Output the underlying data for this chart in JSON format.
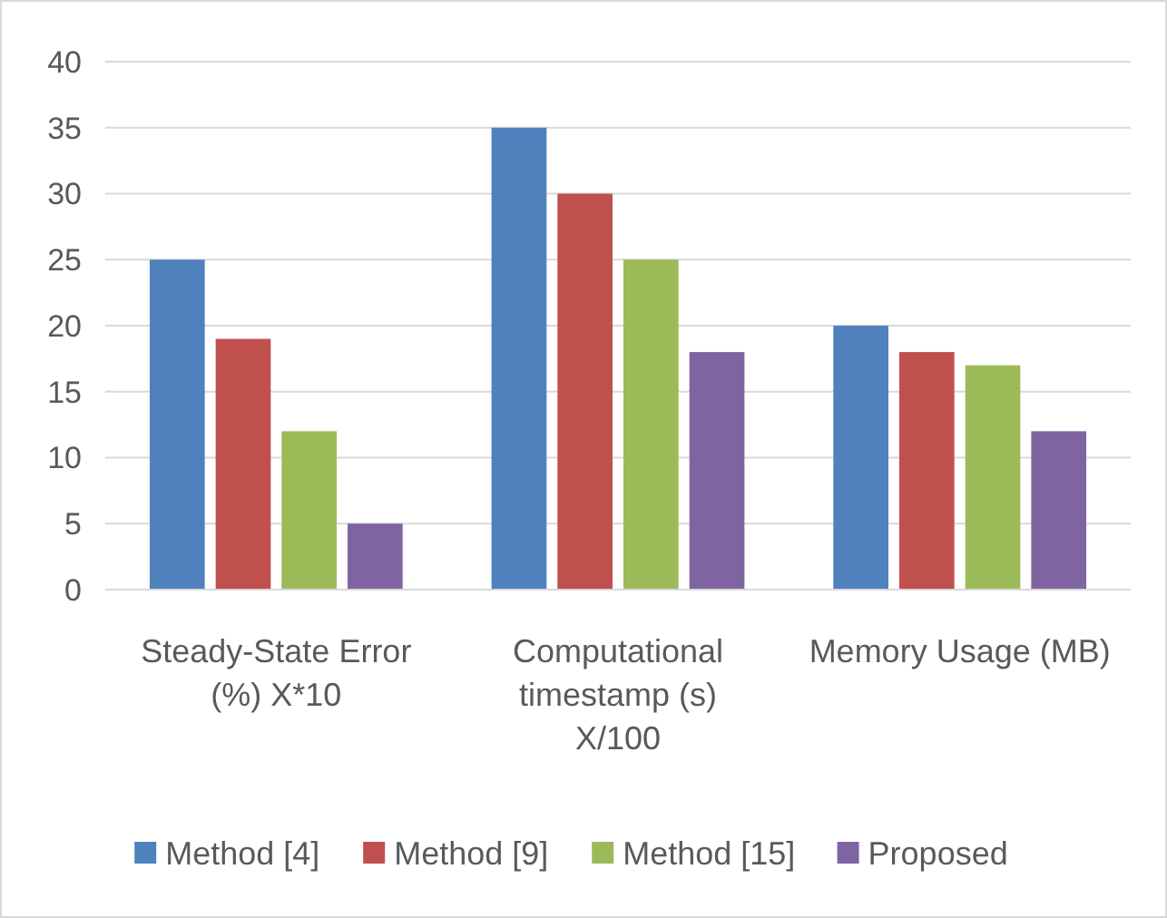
{
  "chart_data": {
    "type": "bar",
    "categories": [
      "Steady-State Error (%) X*10",
      "Computational timestamp (s) X/100",
      "Memory Usage (MB)"
    ],
    "series": [
      {
        "name": "Method [4]",
        "color": "#4f81bd",
        "values": [
          25,
          35,
          20
        ]
      },
      {
        "name": "Method [9]",
        "color": "#c0504d",
        "values": [
          19,
          30,
          18
        ]
      },
      {
        "name": "Method [15]",
        "color": "#9bbb59",
        "values": [
          12,
          25,
          17
        ]
      },
      {
        "name": "Proposed",
        "color": "#8064a2",
        "values": [
          5,
          18,
          12
        ]
      }
    ],
    "ylim": [
      0,
      40
    ],
    "yticks": [
      0,
      5,
      10,
      15,
      20,
      25,
      30,
      35,
      40
    ],
    "grid": "y",
    "legend": "bottom"
  }
}
